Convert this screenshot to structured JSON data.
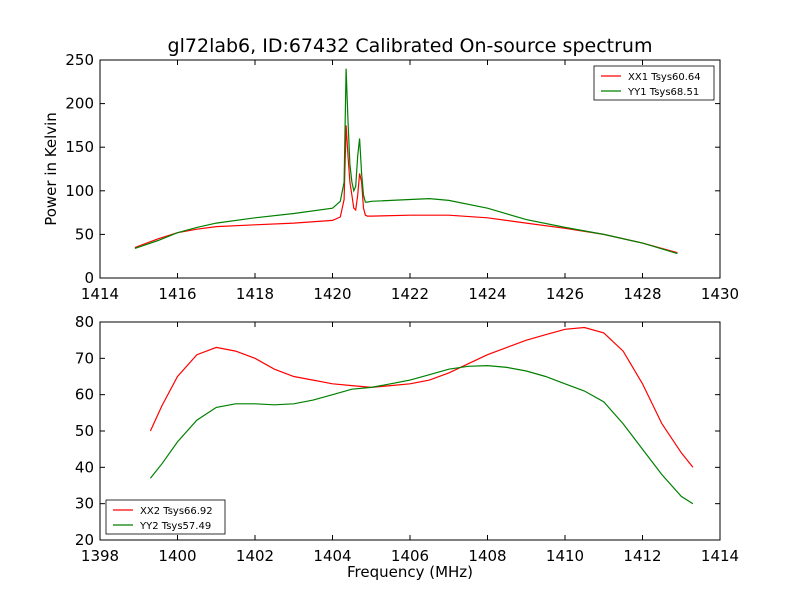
{
  "title": "gl72lab6, ID:67432 Calibrated On-source spectrum",
  "chart_data": [
    {
      "type": "line",
      "title": "gl72lab6, ID:67432 Calibrated On-source spectrum",
      "xlabel": "",
      "ylabel": "Power in Kelvin",
      "xlim": [
        1414,
        1430
      ],
      "ylim": [
        0,
        250
      ],
      "xticks": [
        "1414",
        "1416",
        "1418",
        "1420",
        "1422",
        "1424",
        "1426",
        "1428",
        "1430"
      ],
      "yticks": [
        "0",
        "50",
        "100",
        "150",
        "200",
        "250"
      ],
      "grid": false,
      "legend_position": "top-right",
      "series": [
        {
          "name": "XX1 Tsys60.64",
          "color": "#ff0000",
          "x": [
            1414.9,
            1415.5,
            1416,
            1416.5,
            1417,
            1418,
            1419,
            1420,
            1420.2,
            1420.3,
            1420.35,
            1420.4,
            1420.45,
            1420.5,
            1420.55,
            1420.6,
            1420.65,
            1420.7,
            1420.75,
            1420.8,
            1420.85,
            1420.9,
            1421,
            1422,
            1423,
            1424,
            1425,
            1426,
            1427,
            1428,
            1428.9
          ],
          "y": [
            35,
            45,
            52,
            56,
            59,
            61,
            63,
            66,
            70,
            90,
            175,
            140,
            110,
            95,
            80,
            78,
            95,
            120,
            110,
            80,
            72,
            71,
            71,
            72,
            72,
            69,
            63,
            57,
            50,
            40,
            29
          ]
        },
        {
          "name": "YY1 Tsys68.51",
          "color": "#008000",
          "x": [
            1414.9,
            1415.5,
            1416,
            1416.5,
            1417,
            1418,
            1419,
            1420,
            1420.2,
            1420.3,
            1420.35,
            1420.4,
            1420.45,
            1420.5,
            1420.55,
            1420.6,
            1420.65,
            1420.7,
            1420.75,
            1420.8,
            1420.85,
            1420.9,
            1421,
            1422,
            1422.5,
            1423,
            1424,
            1425,
            1426,
            1427,
            1428,
            1428.9
          ],
          "y": [
            34,
            43,
            52,
            58,
            63,
            69,
            74,
            80,
            88,
            110,
            240,
            180,
            130,
            110,
            100,
            105,
            140,
            160,
            120,
            95,
            87,
            87,
            88,
            90,
            91,
            89,
            80,
            67,
            58,
            50,
            40,
            28
          ]
        }
      ]
    },
    {
      "type": "line",
      "title": "",
      "xlabel": "Frequency (MHz)",
      "ylabel": "",
      "xlim": [
        1398,
        1414
      ],
      "ylim": [
        20,
        80
      ],
      "xticks": [
        "1398",
        "1400",
        "1402",
        "1404",
        "1406",
        "1408",
        "1410",
        "1412",
        "1414"
      ],
      "yticks": [
        "20",
        "30",
        "40",
        "50",
        "60",
        "70",
        "80"
      ],
      "grid": false,
      "legend_position": "bottom-left",
      "series": [
        {
          "name": "XX2 Tsys66.92",
          "color": "#ff0000",
          "x": [
            1399.3,
            1399.6,
            1400,
            1400.5,
            1401,
            1401.5,
            1402,
            1402.5,
            1403,
            1403.5,
            1404,
            1404.5,
            1405,
            1405.5,
            1406,
            1406.5,
            1407,
            1407.5,
            1408,
            1408.5,
            1409,
            1409.5,
            1410,
            1410.5,
            1411,
            1411.5,
            1412,
            1412.5,
            1413,
            1413.3
          ],
          "y": [
            50,
            57,
            65,
            71,
            73,
            72,
            70,
            67,
            65,
            64,
            63,
            62.5,
            62,
            62.5,
            63,
            64,
            66,
            68.5,
            71,
            73,
            75,
            76.5,
            78,
            78.5,
            77,
            72,
            63,
            52,
            44,
            40
          ]
        },
        {
          "name": "YY2 Tsys57.49",
          "color": "#008000",
          "x": [
            1399.3,
            1399.6,
            1400,
            1400.5,
            1401,
            1401.5,
            1402,
            1402.5,
            1403,
            1403.5,
            1404,
            1404.5,
            1405,
            1405.5,
            1406,
            1406.5,
            1407,
            1407.5,
            1408,
            1408.5,
            1409,
            1409.5,
            1410,
            1410.5,
            1411,
            1411.5,
            1412,
            1412.5,
            1413,
            1413.3
          ],
          "y": [
            37,
            41,
            47,
            53,
            56.5,
            57.5,
            57.5,
            57.2,
            57.5,
            58.5,
            60,
            61.5,
            62,
            63,
            64,
            65.5,
            67,
            67.8,
            68,
            67.5,
            66.5,
            65,
            63,
            61,
            58,
            52,
            45,
            38,
            32,
            30
          ]
        }
      ]
    }
  ]
}
